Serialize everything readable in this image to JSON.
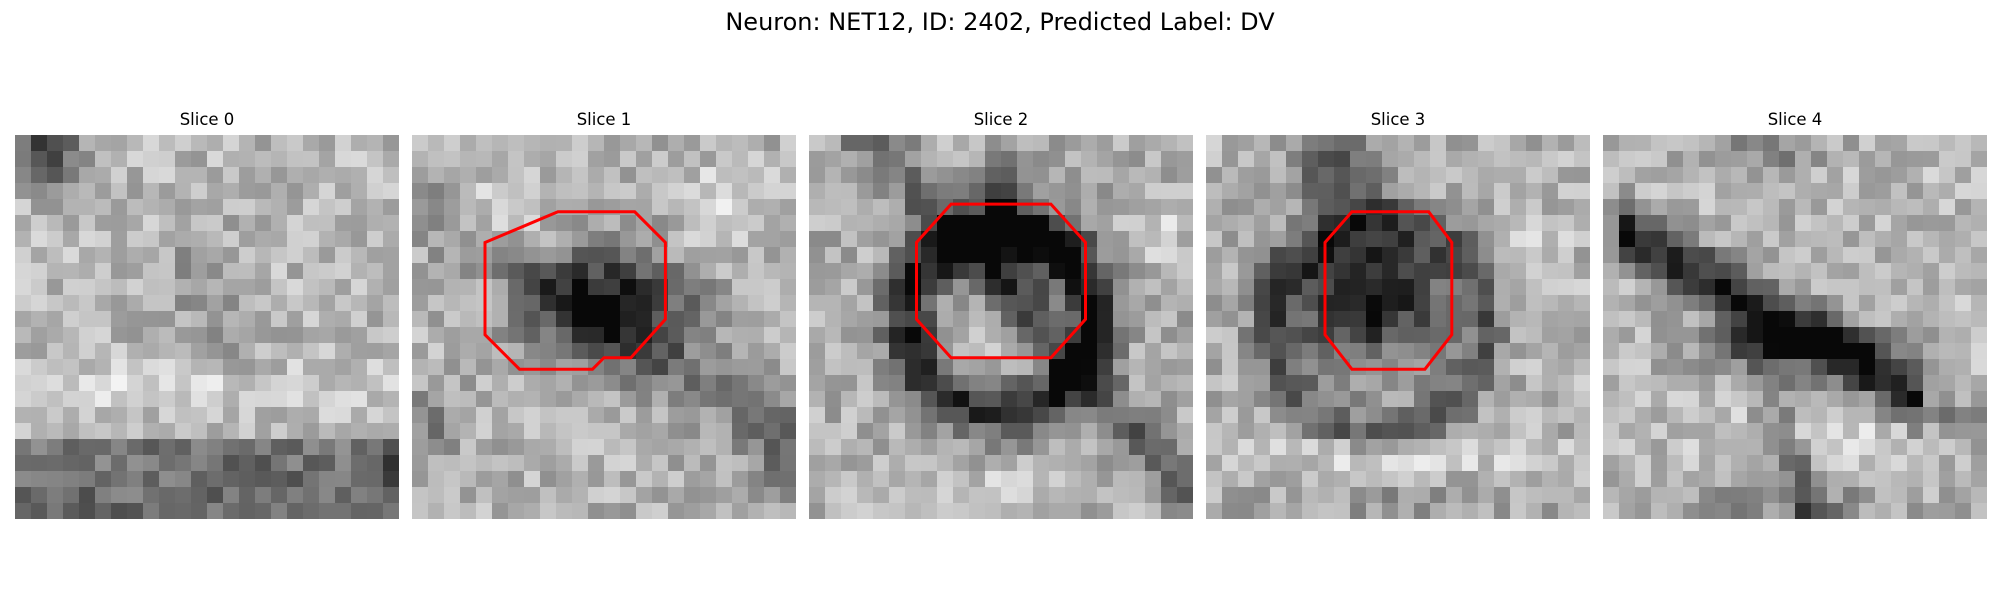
{
  "figure": {
    "title": "Neuron: NET12, ID: 2402, Predicted Label: DV"
  },
  "panels": [
    {
      "title": "Slice 0",
      "image_description": "grayscale microscopy tile, mid-gray with dark top-left corner and darker band along the bottom",
      "has_contour": false
    },
    {
      "title": "Slice 1",
      "image_description": "grayscale microscopy tile with a dark cell body in the center outlined by a red polygon",
      "has_contour": true
    },
    {
      "title": "Slice 2",
      "image_description": "grayscale microscopy tile with a large dark ring-shaped cell outlined by a red octagon",
      "has_contour": true
    },
    {
      "title": "Slice 3",
      "image_description": "grayscale microscopy tile with a dark cell body outlined by a red octagon, bright band below",
      "has_contour": true
    },
    {
      "title": "Slice 4",
      "image_description": "grayscale microscopy tile with a dark diagonal elongated structure across the middle",
      "has_contour": false
    }
  ],
  "colors": {
    "contour": "#ff0000",
    "text": "#000000",
    "background": "#ffffff"
  }
}
